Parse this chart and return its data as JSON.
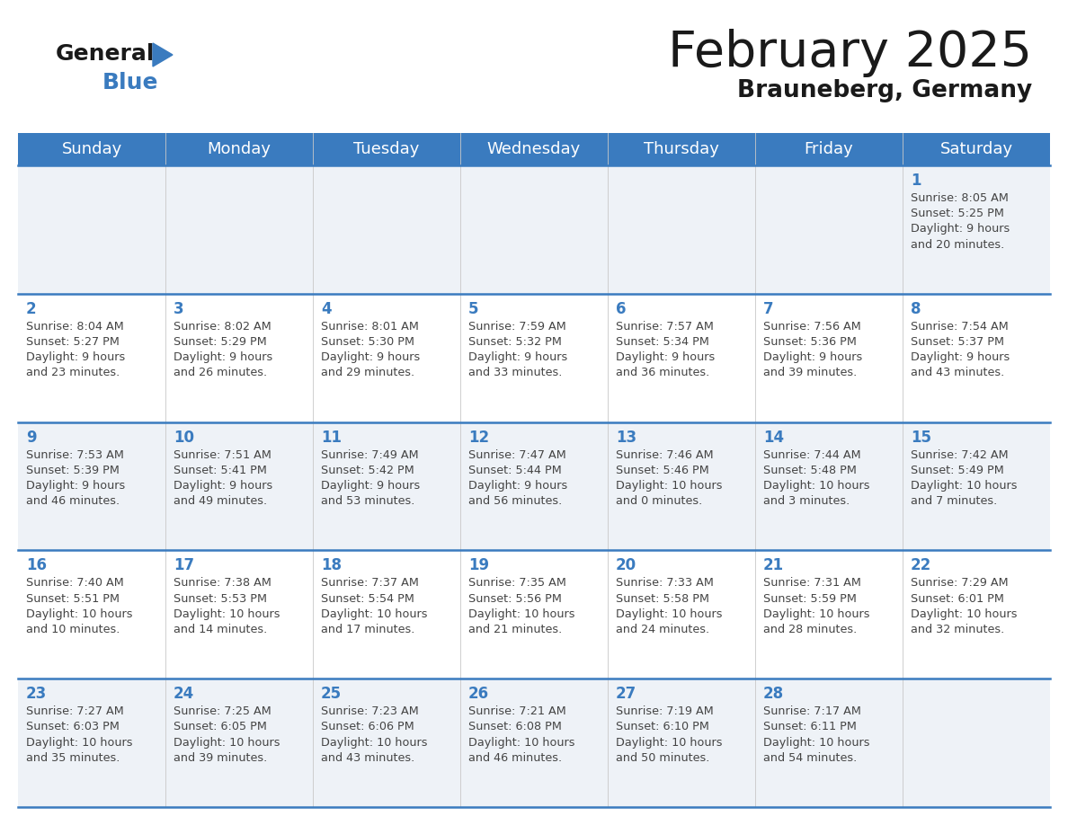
{
  "title": "February 2025",
  "subtitle": "Brauneberg, Germany",
  "days_of_week": [
    "Sunday",
    "Monday",
    "Tuesday",
    "Wednesday",
    "Thursday",
    "Friday",
    "Saturday"
  ],
  "header_bg": "#3a7bbf",
  "header_text": "#ffffff",
  "cell_bg_odd": "#eef2f7",
  "cell_bg_even": "#ffffff",
  "border_color": "#3a7bbf",
  "day_number_color": "#3a7bbf",
  "text_color": "#444444",
  "calendar_data": [
    [
      null,
      null,
      null,
      null,
      null,
      null,
      {
        "day": "1",
        "sunrise": "8:05 AM",
        "sunset": "5:25 PM",
        "daylight_h": "9 hours",
        "daylight_m": "and 20 minutes."
      }
    ],
    [
      {
        "day": "2",
        "sunrise": "8:04 AM",
        "sunset": "5:27 PM",
        "daylight_h": "9 hours",
        "daylight_m": "and 23 minutes."
      },
      {
        "day": "3",
        "sunrise": "8:02 AM",
        "sunset": "5:29 PM",
        "daylight_h": "9 hours",
        "daylight_m": "and 26 minutes."
      },
      {
        "day": "4",
        "sunrise": "8:01 AM",
        "sunset": "5:30 PM",
        "daylight_h": "9 hours",
        "daylight_m": "and 29 minutes."
      },
      {
        "day": "5",
        "sunrise": "7:59 AM",
        "sunset": "5:32 PM",
        "daylight_h": "9 hours",
        "daylight_m": "and 33 minutes."
      },
      {
        "day": "6",
        "sunrise": "7:57 AM",
        "sunset": "5:34 PM",
        "daylight_h": "9 hours",
        "daylight_m": "and 36 minutes."
      },
      {
        "day": "7",
        "sunrise": "7:56 AM",
        "sunset": "5:36 PM",
        "daylight_h": "9 hours",
        "daylight_m": "and 39 minutes."
      },
      {
        "day": "8",
        "sunrise": "7:54 AM",
        "sunset": "5:37 PM",
        "daylight_h": "9 hours",
        "daylight_m": "and 43 minutes."
      }
    ],
    [
      {
        "day": "9",
        "sunrise": "7:53 AM",
        "sunset": "5:39 PM",
        "daylight_h": "9 hours",
        "daylight_m": "and 46 minutes."
      },
      {
        "day": "10",
        "sunrise": "7:51 AM",
        "sunset": "5:41 PM",
        "daylight_h": "9 hours",
        "daylight_m": "and 49 minutes."
      },
      {
        "day": "11",
        "sunrise": "7:49 AM",
        "sunset": "5:42 PM",
        "daylight_h": "9 hours",
        "daylight_m": "and 53 minutes."
      },
      {
        "day": "12",
        "sunrise": "7:47 AM",
        "sunset": "5:44 PM",
        "daylight_h": "9 hours",
        "daylight_m": "and 56 minutes."
      },
      {
        "day": "13",
        "sunrise": "7:46 AM",
        "sunset": "5:46 PM",
        "daylight_h": "10 hours",
        "daylight_m": "and 0 minutes."
      },
      {
        "day": "14",
        "sunrise": "7:44 AM",
        "sunset": "5:48 PM",
        "daylight_h": "10 hours",
        "daylight_m": "and 3 minutes."
      },
      {
        "day": "15",
        "sunrise": "7:42 AM",
        "sunset": "5:49 PM",
        "daylight_h": "10 hours",
        "daylight_m": "and 7 minutes."
      }
    ],
    [
      {
        "day": "16",
        "sunrise": "7:40 AM",
        "sunset": "5:51 PM",
        "daylight_h": "10 hours",
        "daylight_m": "and 10 minutes."
      },
      {
        "day": "17",
        "sunrise": "7:38 AM",
        "sunset": "5:53 PM",
        "daylight_h": "10 hours",
        "daylight_m": "and 14 minutes."
      },
      {
        "day": "18",
        "sunrise": "7:37 AM",
        "sunset": "5:54 PM",
        "daylight_h": "10 hours",
        "daylight_m": "and 17 minutes."
      },
      {
        "day": "19",
        "sunrise": "7:35 AM",
        "sunset": "5:56 PM",
        "daylight_h": "10 hours",
        "daylight_m": "and 21 minutes."
      },
      {
        "day": "20",
        "sunrise": "7:33 AM",
        "sunset": "5:58 PM",
        "daylight_h": "10 hours",
        "daylight_m": "and 24 minutes."
      },
      {
        "day": "21",
        "sunrise": "7:31 AM",
        "sunset": "5:59 PM",
        "daylight_h": "10 hours",
        "daylight_m": "and 28 minutes."
      },
      {
        "day": "22",
        "sunrise": "7:29 AM",
        "sunset": "6:01 PM",
        "daylight_h": "10 hours",
        "daylight_m": "and 32 minutes."
      }
    ],
    [
      {
        "day": "23",
        "sunrise": "7:27 AM",
        "sunset": "6:03 PM",
        "daylight_h": "10 hours",
        "daylight_m": "and 35 minutes."
      },
      {
        "day": "24",
        "sunrise": "7:25 AM",
        "sunset": "6:05 PM",
        "daylight_h": "10 hours",
        "daylight_m": "and 39 minutes."
      },
      {
        "day": "25",
        "sunrise": "7:23 AM",
        "sunset": "6:06 PM",
        "daylight_h": "10 hours",
        "daylight_m": "and 43 minutes."
      },
      {
        "day": "26",
        "sunrise": "7:21 AM",
        "sunset": "6:08 PM",
        "daylight_h": "10 hours",
        "daylight_m": "and 46 minutes."
      },
      {
        "day": "27",
        "sunrise": "7:19 AM",
        "sunset": "6:10 PM",
        "daylight_h": "10 hours",
        "daylight_m": "and 50 minutes."
      },
      {
        "day": "28",
        "sunrise": "7:17 AM",
        "sunset": "6:11 PM",
        "daylight_h": "10 hours",
        "daylight_m": "and 54 minutes."
      },
      null
    ]
  ]
}
